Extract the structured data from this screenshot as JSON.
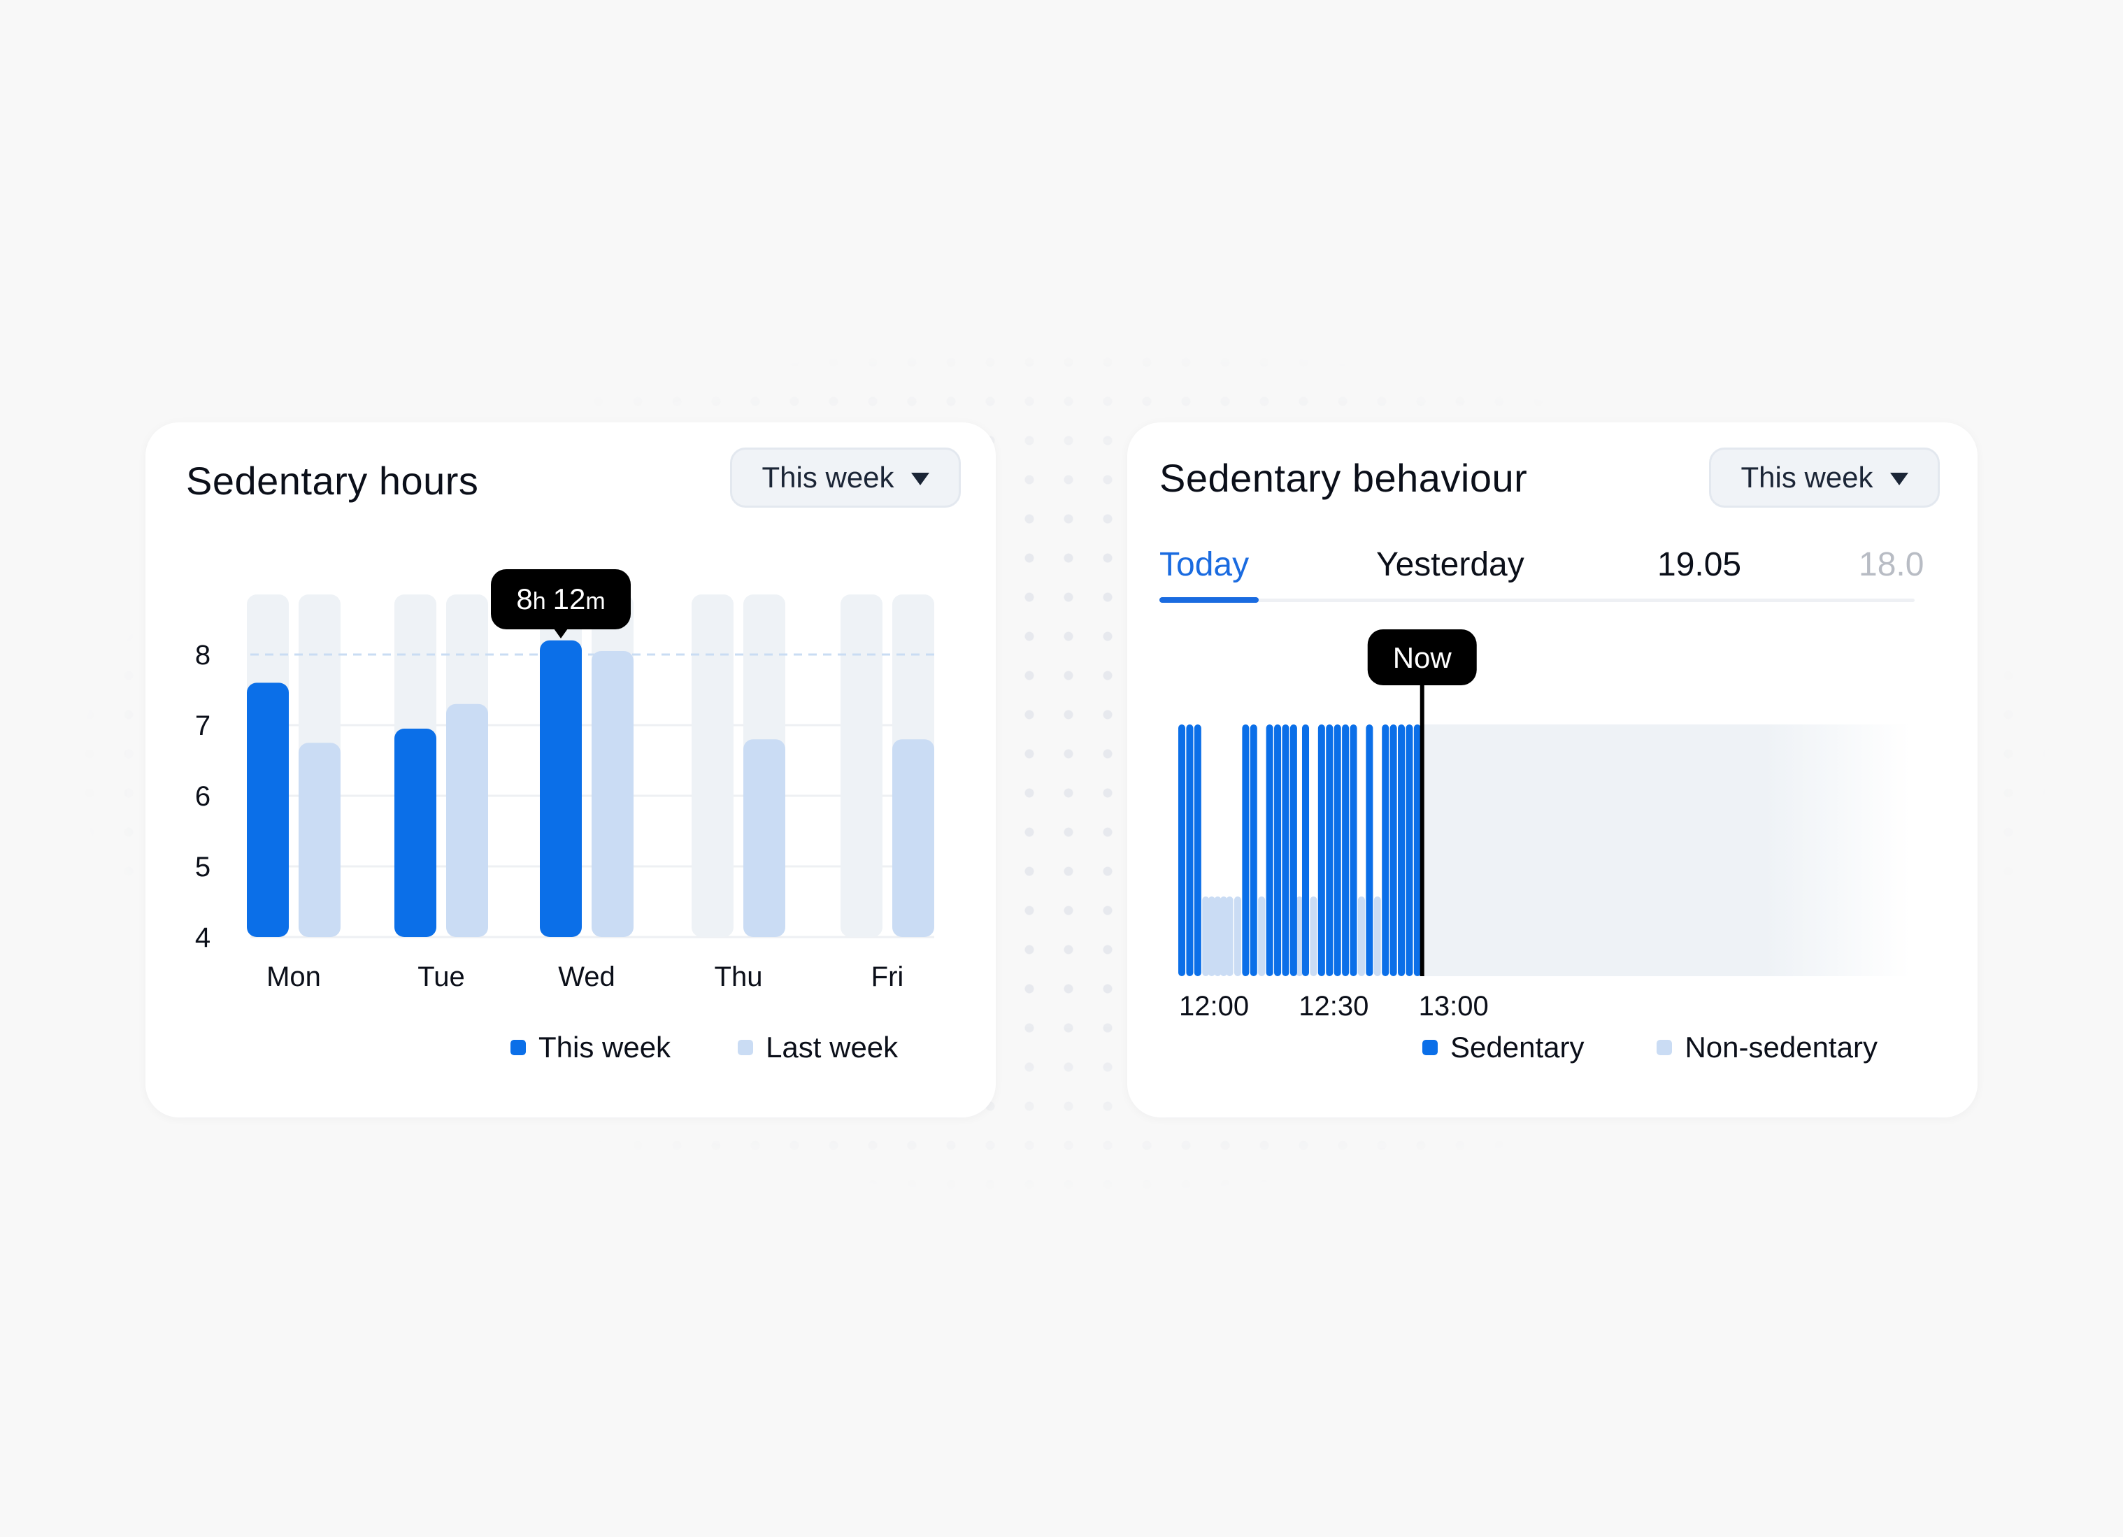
{
  "colors": {
    "this_week": "#0b6fe8",
    "last_week": "#cadcf4",
    "track": "#eef2f6",
    "sedentary": "#0b6fe8",
    "non_sedentary": "#cadcf4",
    "tooltip": "#000000",
    "active_tab": "#1a6be0"
  },
  "hours_card": {
    "title": "Sedentary hours",
    "dropdown": {
      "label": "This week",
      "icon": "caret-down-icon"
    },
    "tooltip": {
      "hours": "8",
      "hours_unit": "h",
      "minutes": "12",
      "minutes_unit": "m",
      "day": "Wed"
    },
    "legend": [
      {
        "label": "This week"
      },
      {
        "label": "Last week"
      }
    ],
    "chart_data": {
      "type": "bar",
      "categories": [
        "Mon",
        "Tue",
        "Wed",
        "Thu",
        "Fri"
      ],
      "series": [
        {
          "name": "This week",
          "values": [
            7.6,
            6.95,
            8.2,
            null,
            null
          ]
        },
        {
          "name": "Last week",
          "values": [
            6.75,
            7.3,
            8.05,
            6.8,
            6.8
          ]
        }
      ],
      "ylim": [
        4,
        8.85
      ],
      "yticks": [
        "4",
        "5",
        "6",
        "7",
        "8"
      ],
      "target_line": 8,
      "grid": true
    }
  },
  "behaviour_card": {
    "title": "Sedentary behaviour",
    "dropdown": {
      "label": "This week",
      "icon": "caret-down-icon"
    },
    "tabs": [
      {
        "label": "Today",
        "active": true
      },
      {
        "label": "Yesterday",
        "active": false
      },
      {
        "label": "19.05",
        "active": false
      },
      {
        "label": "18.0",
        "active": false
      }
    ],
    "now_label": "Now",
    "legend": [
      {
        "label": "Sedentary"
      },
      {
        "label": "Non-sedentary"
      }
    ],
    "chart_data": {
      "type": "bar",
      "x_ticks": [
        "12:00",
        "12:30",
        "13:00"
      ],
      "x_tick_minutes": [
        0,
        30,
        60
      ],
      "now_minute": 60.2,
      "sedentary_minutes": [
        0,
        2,
        4,
        16,
        18,
        22,
        24,
        26,
        28,
        31,
        35,
        37,
        39,
        41,
        43,
        47,
        51,
        53,
        55,
        57,
        59
      ],
      "non_sedentary_minutes": [
        6,
        7.5,
        9,
        10.5,
        12,
        14,
        20,
        29.5,
        33,
        45,
        49,
        59.5
      ]
    }
  }
}
